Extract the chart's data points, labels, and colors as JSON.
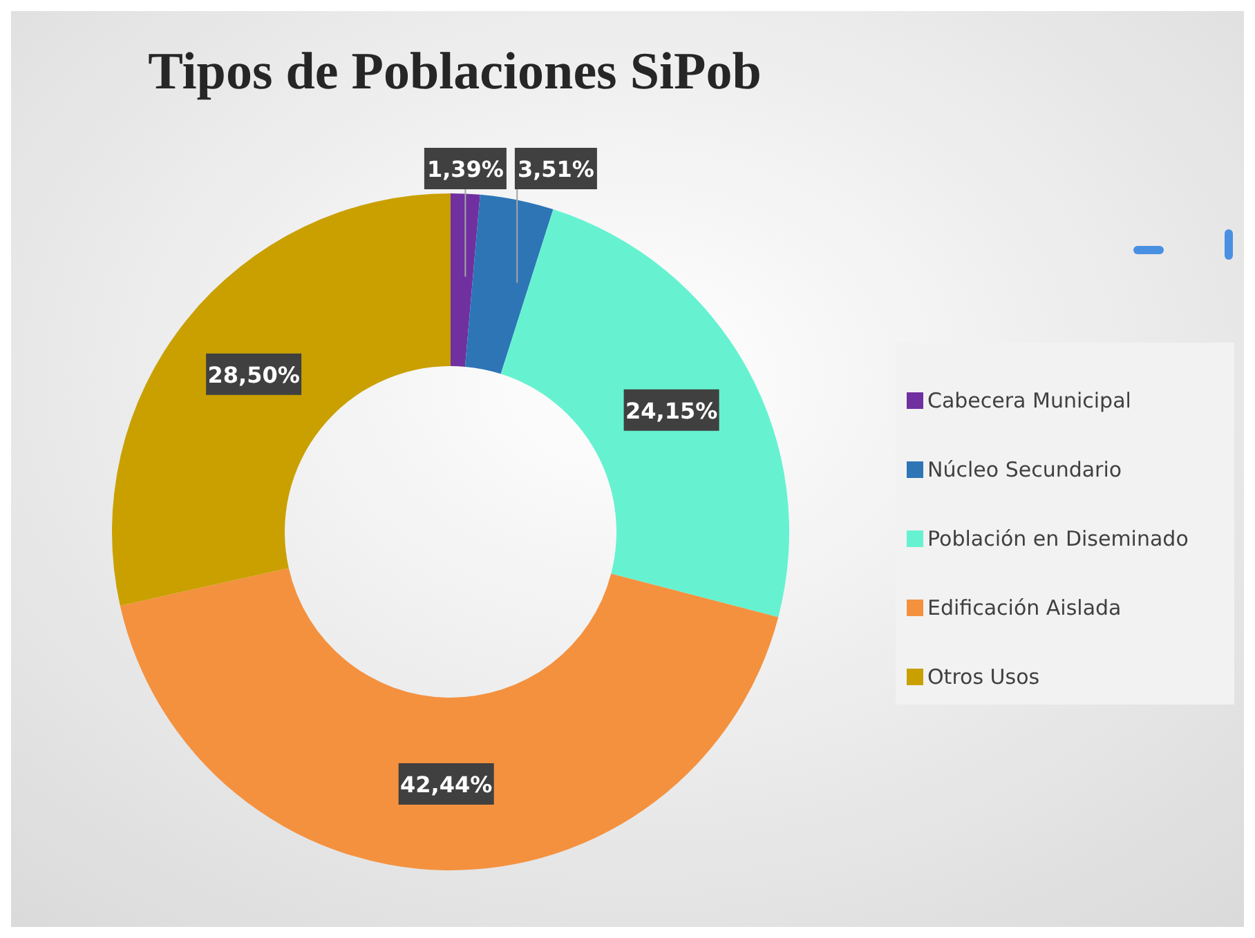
{
  "chart_data": {
    "type": "donut",
    "title": "Tipos de Poblaciones SiPob",
    "categories": [
      "Cabecera Municipal",
      "Núcleo Secundario",
      "Población en Diseminado",
      "Edificación Aislada",
      "Otros Usos"
    ],
    "values": [
      1.39,
      3.51,
      24.15,
      42.44,
      28.5
    ],
    "value_labels": [
      "1,39%",
      "3,51%",
      "24,15%",
      "42,44%",
      "28,50%"
    ],
    "colors": [
      "#7030a0",
      "#2e75b6",
      "#66f2d0",
      "#f4913f",
      "#c9a000"
    ],
    "legend": "right"
  }
}
